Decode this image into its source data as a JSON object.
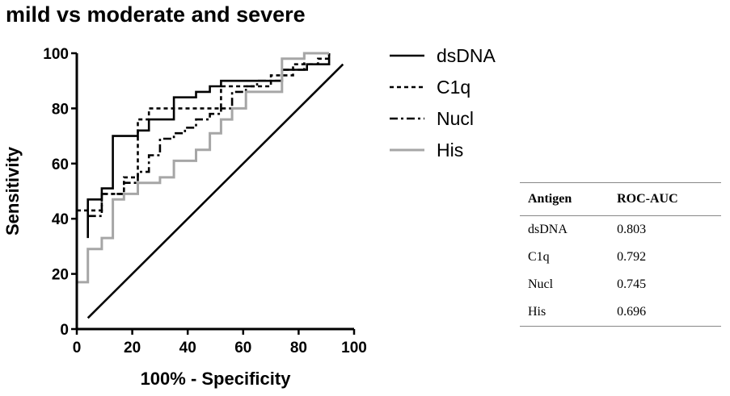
{
  "chart_data": {
    "type": "line",
    "title": "mild   vs   moderate and severe",
    "xlabel": "100%  - Specificity",
    "ylabel": "Sensitivity",
    "xlim": [
      0,
      100
    ],
    "ylim": [
      0,
      100
    ],
    "xticks": [
      0,
      20,
      40,
      60,
      80,
      100
    ],
    "yticks": [
      0,
      20,
      40,
      60,
      80,
      100
    ],
    "grid": false,
    "legend_position": "right",
    "series": [
      {
        "name": "dsDNA",
        "color": "#000000",
        "dash": "solid",
        "points": [
          [
            4,
            33
          ],
          [
            4,
            47
          ],
          [
            9,
            47
          ],
          [
            9,
            51
          ],
          [
            13,
            51
          ],
          [
            13,
            70
          ],
          [
            22,
            70
          ],
          [
            22,
            72
          ],
          [
            26,
            72
          ],
          [
            26,
            76
          ],
          [
            35,
            76
          ],
          [
            35,
            84
          ],
          [
            43,
            84
          ],
          [
            43,
            86
          ],
          [
            48,
            86
          ],
          [
            48,
            88
          ],
          [
            52,
            88
          ],
          [
            52,
            90
          ],
          [
            74,
            90
          ],
          [
            74,
            94
          ],
          [
            83,
            94
          ],
          [
            83,
            96
          ],
          [
            91,
            96
          ],
          [
            91,
            100
          ]
        ]
      },
      {
        "name": "C1q",
        "color": "#000000",
        "dash": "short",
        "points": [
          [
            0,
            43
          ],
          [
            9,
            43
          ],
          [
            9,
            49
          ],
          [
            17,
            49
          ],
          [
            17,
            55
          ],
          [
            22,
            55
          ],
          [
            22,
            76
          ],
          [
            26,
            76
          ],
          [
            26,
            80
          ],
          [
            52,
            80
          ],
          [
            52,
            88
          ],
          [
            70,
            88
          ],
          [
            70,
            92
          ],
          [
            78,
            92
          ],
          [
            78,
            96
          ],
          [
            87,
            96
          ],
          [
            87,
            98
          ],
          [
            91,
            98
          ],
          [
            91,
            100
          ]
        ]
      },
      {
        "name": "Nucl",
        "color": "#000000",
        "dash": "dashdot",
        "points": [
          [
            4,
            41
          ],
          [
            9,
            41
          ],
          [
            9,
            49
          ],
          [
            17,
            49
          ],
          [
            17,
            53
          ],
          [
            22,
            53
          ],
          [
            22,
            57
          ],
          [
            26,
            57
          ],
          [
            26,
            63
          ],
          [
            30,
            63
          ],
          [
            30,
            69
          ],
          [
            35,
            69
          ],
          [
            35,
            71
          ],
          [
            39,
            71
          ],
          [
            39,
            73
          ],
          [
            43,
            73
          ],
          [
            43,
            76
          ],
          [
            48,
            76
          ],
          [
            48,
            78
          ],
          [
            52,
            78
          ],
          [
            52,
            80
          ],
          [
            56,
            80
          ],
          [
            56,
            86
          ],
          [
            61,
            86
          ],
          [
            61,
            88
          ],
          [
            65,
            88
          ],
          [
            65,
            90
          ],
          [
            74,
            90
          ],
          [
            74,
            94
          ],
          [
            82,
            94
          ],
          [
            82,
            100
          ]
        ]
      },
      {
        "name": "His",
        "color": "#a6a6a6",
        "dash": "solid",
        "points": [
          [
            0,
            0
          ],
          [
            0,
            17
          ],
          [
            4,
            17
          ],
          [
            4,
            29
          ],
          [
            9,
            29
          ],
          [
            9,
            33
          ],
          [
            13,
            33
          ],
          [
            13,
            47
          ],
          [
            17,
            47
          ],
          [
            17,
            49
          ],
          [
            22,
            49
          ],
          [
            22,
            53
          ],
          [
            30,
            53
          ],
          [
            30,
            55
          ],
          [
            35,
            55
          ],
          [
            35,
            61
          ],
          [
            43,
            61
          ],
          [
            43,
            65
          ],
          [
            48,
            65
          ],
          [
            48,
            71
          ],
          [
            52,
            71
          ],
          [
            52,
            76
          ],
          [
            56,
            76
          ],
          [
            56,
            80
          ],
          [
            61,
            80
          ],
          [
            61,
            86
          ],
          [
            74,
            86
          ],
          [
            74,
            98
          ],
          [
            82,
            98
          ],
          [
            82,
            100
          ],
          [
            91,
            100
          ]
        ]
      },
      {
        "name": "",
        "color": "#000000",
        "dash": "solid",
        "points": [
          [
            4,
            4
          ],
          [
            96,
            96
          ]
        ]
      }
    ]
  },
  "table": {
    "headers": [
      "Antigen",
      "ROC-AUC"
    ],
    "rows": [
      [
        "dsDNA",
        "0.803"
      ],
      [
        "C1q",
        "0.792"
      ],
      [
        "Nucl",
        "0.745"
      ],
      [
        "His",
        "0.696"
      ]
    ]
  }
}
